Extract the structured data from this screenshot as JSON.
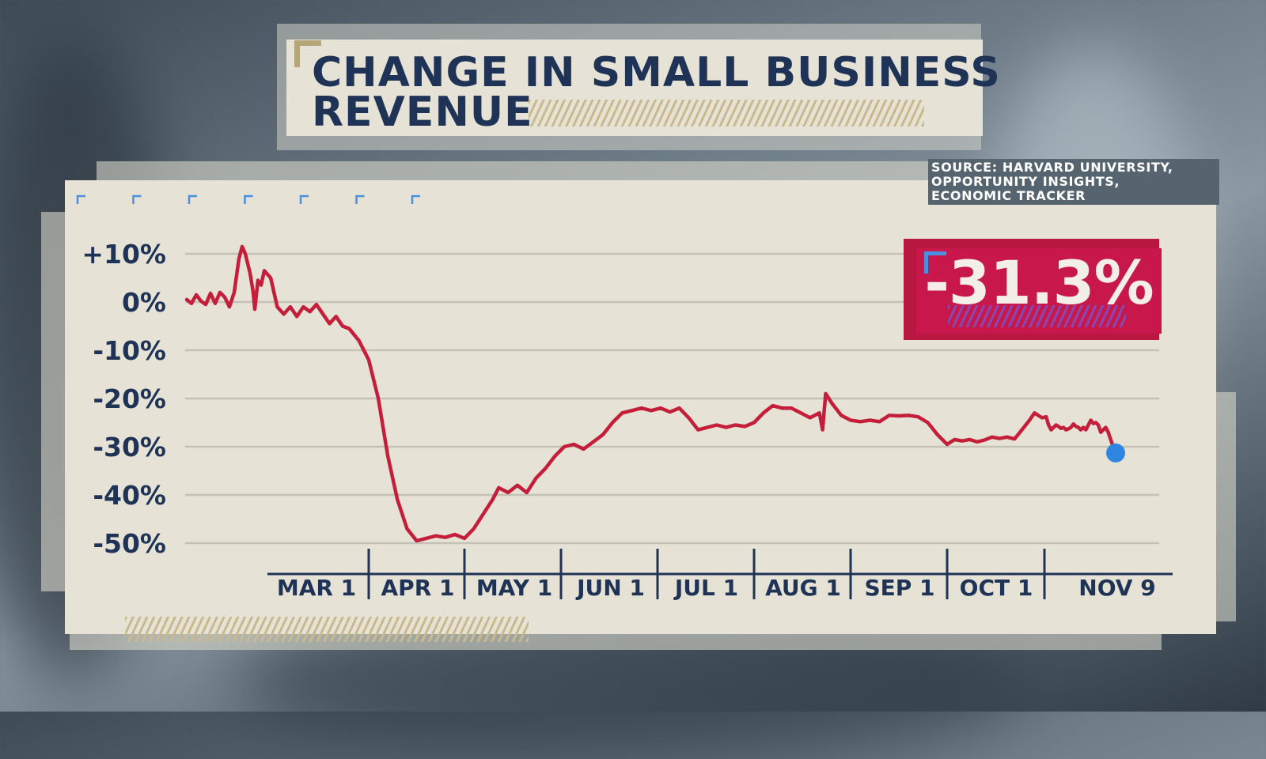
{
  "header": {
    "title_line1": "CHANGE IN SMALL BUSINESS",
    "title_line2": "REVENUE"
  },
  "source": {
    "line1": "SOURCE: HARVARD UNIVERSITY,",
    "line2": "OPPORTUNITY INSIGHTS,",
    "line3": "ECONOMIC TRACKER"
  },
  "callout": {
    "value": "-31.3%",
    "color": "#c8174a"
  },
  "colors": {
    "line": "#c41e3a",
    "endpoint": "#2f86e0",
    "text": "#1e3355",
    "panel": "#e6e3d6"
  },
  "chart_data": {
    "type": "line",
    "title": "CHANGE IN SMALL BUSINESS REVENUE",
    "xlabel": "",
    "ylabel": "",
    "ylim": [
      -50,
      10
    ],
    "yticks": [
      10,
      0,
      -10,
      -20,
      -30,
      -40,
      -50
    ],
    "ytick_labels": [
      "+10%",
      "0%",
      "-10%",
      "-20%",
      "-30%",
      "-40%",
      "-50%"
    ],
    "xticks": [
      "2020-03-01",
      "2020-04-01",
      "2020-05-01",
      "2020-06-01",
      "2020-07-01",
      "2020-08-01",
      "2020-09-01",
      "2020-10-01",
      "2020-11-09"
    ],
    "xtick_labels": [
      "MAR 1",
      "APR 1",
      "MAY 1",
      "JUN 1",
      "JUL 1",
      "AUG 1",
      "SEP 1",
      "OCT 1",
      "NOV 9"
    ],
    "grid": true,
    "series": [
      {
        "name": "",
        "points": [
          [
            "2020-01-10",
            0.5
          ],
          [
            "2020-01-13",
            -0.3
          ],
          [
            "2020-01-16",
            1.5
          ],
          [
            "2020-01-19",
            0.2
          ],
          [
            "2020-01-22",
            -0.5
          ],
          [
            "2020-01-25",
            1.8
          ],
          [
            "2020-01-28",
            -0.3
          ],
          [
            "2020-01-31",
            2.0
          ],
          [
            "2020-02-03",
            1.0
          ],
          [
            "2020-02-06",
            -1.0
          ],
          [
            "2020-02-09",
            2.0
          ],
          [
            "2020-02-12",
            9.0
          ],
          [
            "2020-02-14",
            11.5
          ],
          [
            "2020-02-16",
            10.0
          ],
          [
            "2020-02-19",
            6.0
          ],
          [
            "2020-02-21",
            2.0
          ],
          [
            "2020-02-22",
            -1.5
          ],
          [
            "2020-02-24",
            4.5
          ],
          [
            "2020-02-26",
            3.5
          ],
          [
            "2020-02-28",
            6.5
          ],
          [
            "2020-03-02",
            5.0
          ],
          [
            "2020-03-04",
            -1.0
          ],
          [
            "2020-03-06",
            -2.5
          ],
          [
            "2020-03-08",
            -1.0
          ],
          [
            "2020-03-10",
            -3.0
          ],
          [
            "2020-03-12",
            -1.0
          ],
          [
            "2020-03-14",
            -2.0
          ],
          [
            "2020-03-16",
            -0.5
          ],
          [
            "2020-03-18",
            -2.5
          ],
          [
            "2020-03-20",
            -4.5
          ],
          [
            "2020-03-22",
            -3.0
          ],
          [
            "2020-03-24",
            -5.0
          ],
          [
            "2020-03-26",
            -5.5
          ],
          [
            "2020-03-29",
            -8.0
          ],
          [
            "2020-04-01",
            -12.0
          ],
          [
            "2020-04-04",
            -20.0
          ],
          [
            "2020-04-07",
            -32.0
          ],
          [
            "2020-04-10",
            -41.0
          ],
          [
            "2020-04-13",
            -47.0
          ],
          [
            "2020-04-16",
            -49.5
          ],
          [
            "2020-04-19",
            -49.0
          ],
          [
            "2020-04-22",
            -48.5
          ],
          [
            "2020-04-25",
            -48.8
          ],
          [
            "2020-04-28",
            -48.2
          ],
          [
            "2020-05-01",
            -49.0
          ],
          [
            "2020-05-04",
            -47.0
          ],
          [
            "2020-05-07",
            -44.0
          ],
          [
            "2020-05-10",
            -41.0
          ],
          [
            "2020-05-12",
            -38.5
          ],
          [
            "2020-05-15",
            -39.5
          ],
          [
            "2020-05-18",
            -38.0
          ],
          [
            "2020-05-21",
            -39.5
          ],
          [
            "2020-05-24",
            -36.5
          ],
          [
            "2020-05-27",
            -34.5
          ],
          [
            "2020-05-30",
            -32.0
          ],
          [
            "2020-06-02",
            -30.0
          ],
          [
            "2020-06-05",
            -29.5
          ],
          [
            "2020-06-08",
            -30.5
          ],
          [
            "2020-06-11",
            -29.0
          ],
          [
            "2020-06-14",
            -27.5
          ],
          [
            "2020-06-17",
            -25.0
          ],
          [
            "2020-06-20",
            -23.0
          ],
          [
            "2020-06-23",
            -22.5
          ],
          [
            "2020-06-26",
            -22.0
          ],
          [
            "2020-06-29",
            -22.5
          ],
          [
            "2020-07-02",
            -22.0
          ],
          [
            "2020-07-05",
            -22.8
          ],
          [
            "2020-07-08",
            -22.0
          ],
          [
            "2020-07-11",
            -24.0
          ],
          [
            "2020-07-14",
            -26.5
          ],
          [
            "2020-07-17",
            -26.0
          ],
          [
            "2020-07-20",
            -25.5
          ],
          [
            "2020-07-23",
            -26.0
          ],
          [
            "2020-07-26",
            -25.5
          ],
          [
            "2020-07-29",
            -25.8
          ],
          [
            "2020-08-01",
            -25.0
          ],
          [
            "2020-08-04",
            -23.0
          ],
          [
            "2020-08-07",
            -21.5
          ],
          [
            "2020-08-10",
            -22.0
          ],
          [
            "2020-08-13",
            -22.0
          ],
          [
            "2020-08-16",
            -23.0
          ],
          [
            "2020-08-19",
            -24.0
          ],
          [
            "2020-08-22",
            -23.0
          ],
          [
            "2020-08-23",
            -26.5
          ],
          [
            "2020-08-24",
            -19.0
          ],
          [
            "2020-08-26",
            -21.0
          ],
          [
            "2020-08-29",
            -23.5
          ],
          [
            "2020-09-01",
            -24.5
          ],
          [
            "2020-09-04",
            -24.8
          ],
          [
            "2020-09-07",
            -24.5
          ],
          [
            "2020-09-10",
            -24.8
          ],
          [
            "2020-09-13",
            -23.5
          ],
          [
            "2020-09-16",
            -23.6
          ],
          [
            "2020-09-19",
            -23.5
          ],
          [
            "2020-09-22",
            -23.8
          ],
          [
            "2020-09-25",
            -25.0
          ],
          [
            "2020-09-28",
            -27.5
          ],
          [
            "2020-10-01",
            -29.5
          ],
          [
            "2020-10-04",
            -28.5
          ],
          [
            "2020-10-07",
            -28.8
          ],
          [
            "2020-10-10",
            -28.5
          ],
          [
            "2020-10-13",
            -29.0
          ],
          [
            "2020-10-16",
            -28.6
          ],
          [
            "2020-10-19",
            -28.0
          ],
          [
            "2020-10-22",
            -28.3
          ],
          [
            "2020-10-25",
            -28.0
          ],
          [
            "2020-10-28",
            -28.4
          ],
          [
            "2020-10-31",
            -26.5
          ],
          [
            "2020-11-03",
            -24.5
          ],
          [
            "2020-11-05",
            -23.0
          ],
          [
            "2020-11-08",
            -24.0
          ],
          [
            "2020-11-11",
            -23.8
          ],
          [
            "2020-11-14",
            -25.5
          ],
          [
            "2020-11-17",
            -26.5
          ],
          [
            "2020-11-20",
            -26.0
          ],
          [
            "2020-11-23",
            -25.5
          ],
          [
            "2020-11-26",
            -25.8
          ],
          [
            "2020-11-29",
            -26.2
          ],
          [
            "2020-12-02",
            -26.0
          ],
          [
            "2020-12-05",
            -26.5
          ],
          [
            "2020-12-08",
            -26.3
          ],
          [
            "2020-12-11",
            -26.0
          ],
          [
            "2020-12-14",
            -25.3
          ],
          [
            "2020-12-17",
            -25.8
          ],
          [
            "2020-12-20",
            -26.0
          ],
          [
            "2020-12-23",
            -26.5
          ],
          [
            "2020-12-26",
            -26.0
          ],
          [
            "2020-12-29",
            -26.5
          ],
          [
            "2021-01-01",
            -25.5
          ],
          [
            "2021-01-04",
            -24.5
          ],
          [
            "2021-01-07",
            -25.2
          ],
          [
            "2021-01-10",
            -25.0
          ],
          [
            "2021-01-13",
            -25.5
          ],
          [
            "2021-01-16",
            -27.0
          ],
          [
            "2021-01-19",
            -26.5
          ],
          [
            "2021-01-22",
            -26.0
          ],
          [
            "2021-01-25",
            -27.0
          ],
          [
            "2021-01-28",
            -28.5
          ],
          [
            "2021-01-31",
            -30.0
          ],
          [
            "2021-02-03",
            -31.3
          ]
        ]
      }
    ],
    "endpoint": {
      "x": "2021-02-03",
      "y": -31.3,
      "label": "-31.3%"
    },
    "source_text": "SOURCE: HARVARD UNIVERSITY, OPPORTUNITY INSIGHTS, ECONOMIC TRACKER"
  }
}
